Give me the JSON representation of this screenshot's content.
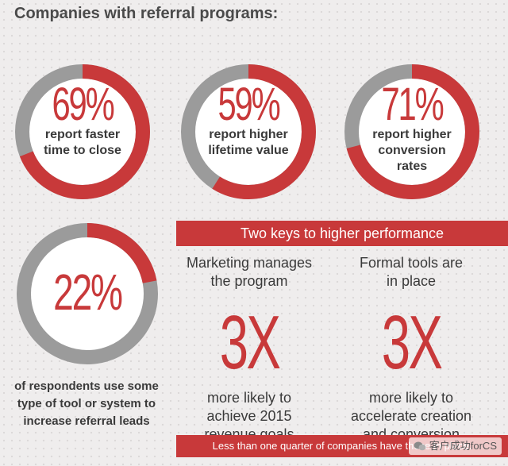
{
  "title": "Companies with referral programs:",
  "colors": {
    "accent": "#c8393a",
    "track": "#9b9b9b",
    "text": "#3a3a3a"
  },
  "chart_data": {
    "type": "pie",
    "title": "Companies with referral programs:",
    "items": [
      {
        "value": 69,
        "label": "69%",
        "caption": [
          "report faster",
          "time to close"
        ]
      },
      {
        "value": 59,
        "label": "59%",
        "caption": [
          "report higher",
          "lifetime value"
        ]
      },
      {
        "value": 71,
        "label": "71%",
        "caption": [
          "report higher",
          "conversion",
          "rates"
        ]
      },
      {
        "value": 22,
        "label": "22%",
        "caption": []
      }
    ]
  },
  "rings": [
    {
      "label": "69%",
      "cap1": "report faster",
      "cap2": "time to close",
      "cap3": ""
    },
    {
      "label": "59%",
      "cap1": "report higher",
      "cap2": "lifetime value",
      "cap3": ""
    },
    {
      "label": "71%",
      "cap1": "report higher",
      "cap2": "conversion",
      "cap3": "rates"
    },
    {
      "label": "22%"
    }
  ],
  "ring4_text": "of respondents use some type of tool or system to increase referral leads",
  "keys": {
    "heading": "Two keys to higher performance",
    "left": {
      "head1": "Marketing manages",
      "head2": "the program",
      "mult": "3X",
      "desc1": "more likely to",
      "desc2": "achieve 2015",
      "desc3": "revenue goals"
    },
    "right": {
      "head1": "Formal tools are",
      "head2": "in place",
      "mult": "3X",
      "desc1": "more likely to",
      "desc2": "accelerate creation",
      "desc3": "and conversion"
    }
  },
  "bottom_bar": "Less than one quarter of companies have these in place.",
  "watermark": "客户成功forCS"
}
